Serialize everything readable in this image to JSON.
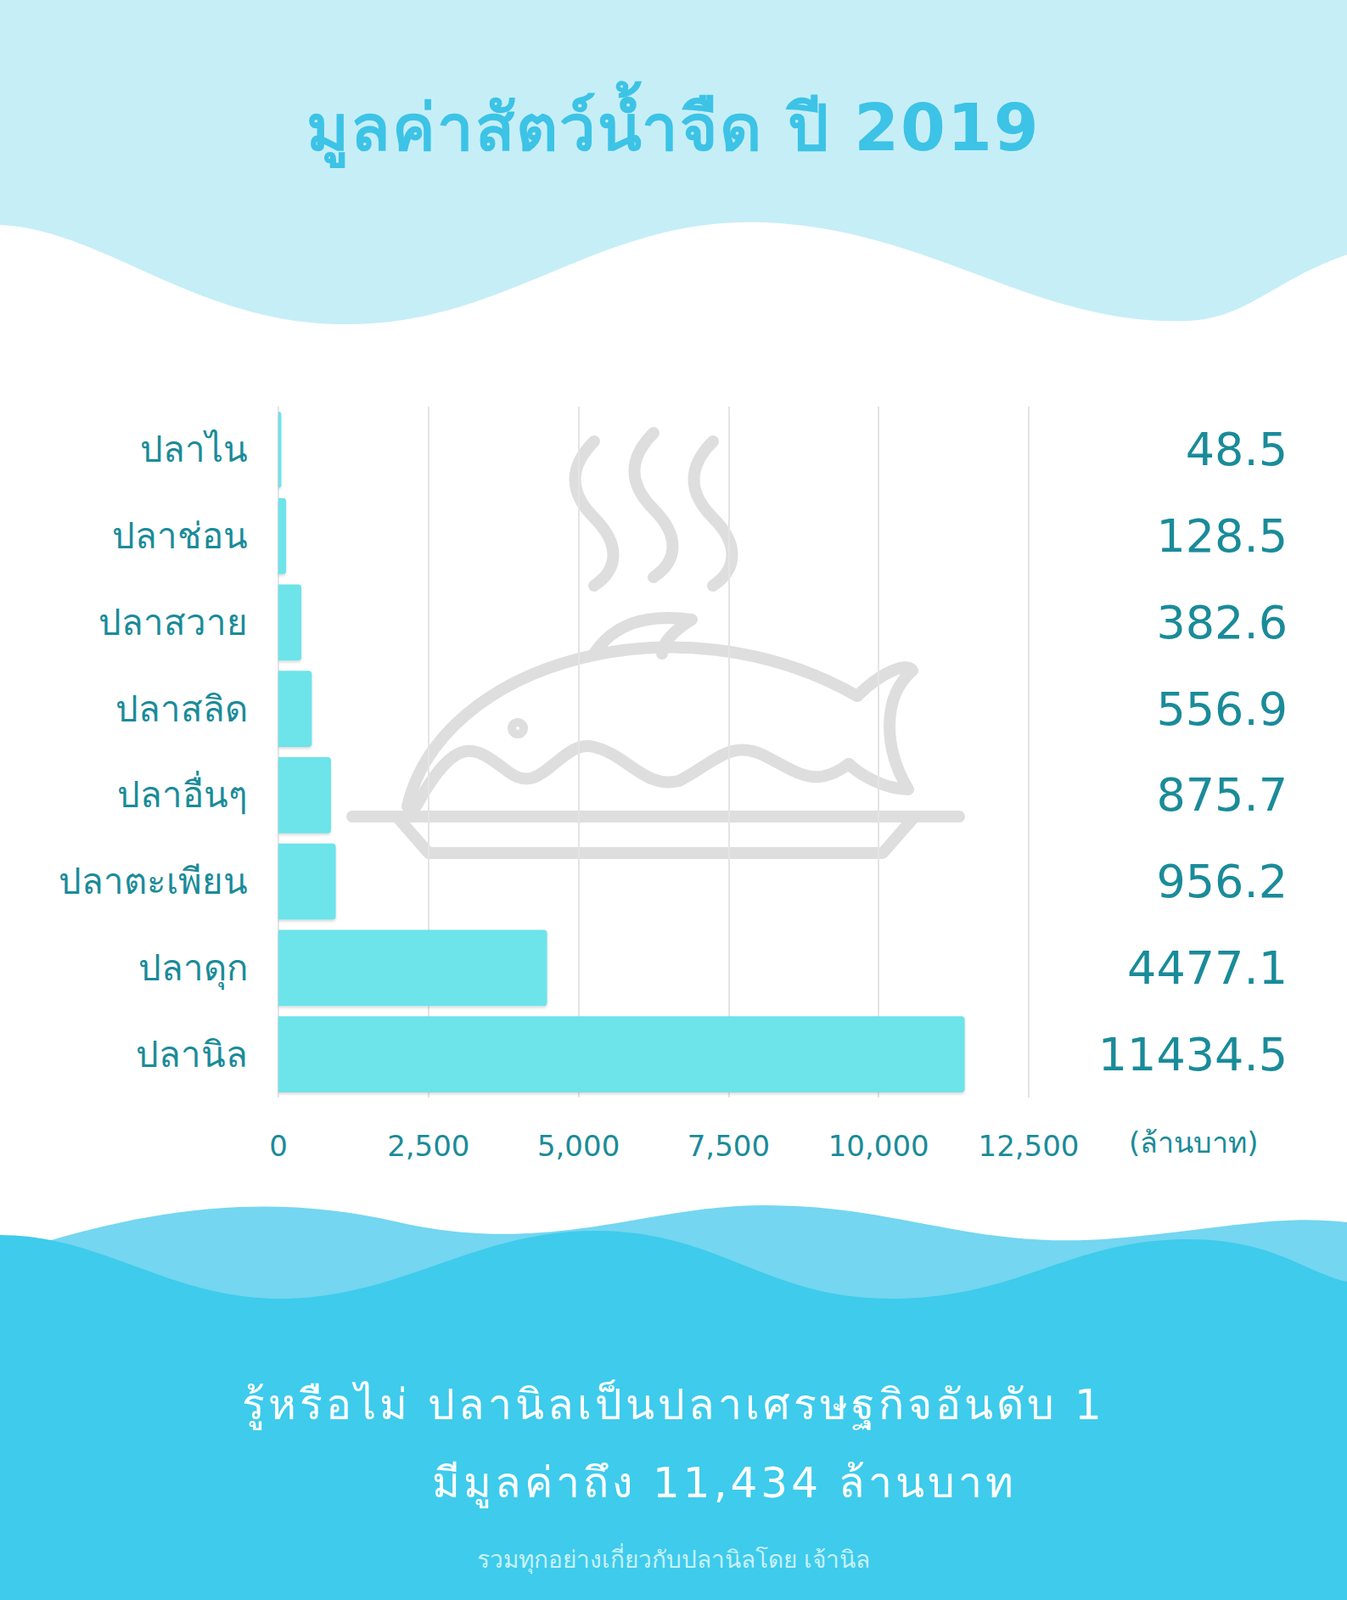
{
  "chart_data": {
    "type": "bar",
    "title": "มูลค่าสัตว์น้ำจืด ปี 2019",
    "categories": [
      "ปลาไน",
      "ปลาช่อน",
      "ปลาสวาย",
      "ปลาสลิด",
      "ปลาอื่นๆ",
      "ปลาตะเพียน",
      "ปลาดุก",
      "ปลานิล"
    ],
    "values": [
      48.5,
      128.5,
      382.6,
      556.9,
      875.7,
      956.2,
      4477.1,
      11434.5
    ],
    "color": "#6de3ea",
    "orientation": "horizontal",
    "data_labels": true,
    "grid": true,
    "xlabel": "(ล้านบาท)",
    "xlim": [
      0,
      12500
    ],
    "xticks": [
      0,
      {
        "value": 2500,
        "label": "2,500"
      },
      {
        "value": 5000,
        "label": "5,000"
      },
      {
        "value": 7500,
        "label": "7,500"
      },
      {
        "value": 10000,
        "label": "10,000"
      },
      {
        "value": 12500,
        "label": "12,500"
      }
    ],
    "annotations": [
      "รู้หรือไม่ ปลานิลเป็นปลาเศรษฐกิจอันดับ 1",
      "มีมูลค่าถึง 11,434 ล้านบาท",
      "รวมทุกอย่างเกี่ยวกับปลานิลโดย เจ้านิล"
    ]
  }
}
